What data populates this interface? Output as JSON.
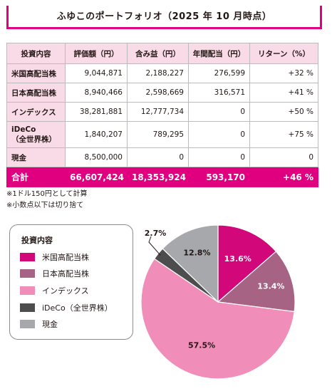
{
  "title": "ふゆこのポートフォリオ（2025 年 10 月時点）",
  "table": {
    "headers": [
      "投資内容",
      "評価額（円）",
      "含み益（円）",
      "年間配当（円）",
      "リターン（%）"
    ],
    "rows": [
      {
        "name": "米国高配当株",
        "sub": "",
        "value": "9,044,871",
        "gain": "2,188,227",
        "dividend": "276,599",
        "return": "+32 %"
      },
      {
        "name": "日本高配当株",
        "sub": "",
        "value": "8,940,466",
        "gain": "2,598,669",
        "dividend": "316,571",
        "return": "+41 %"
      },
      {
        "name": "インデックス",
        "sub": "",
        "value": "38,281,881",
        "gain": "12,777,734",
        "dividend": "0",
        "return": "+50 %"
      },
      {
        "name": "iDeCo",
        "sub": "（全世界株）",
        "value": "1,840,207",
        "gain": "789,295",
        "dividend": "0",
        "return": "+75 %"
      },
      {
        "name": "現金",
        "sub": "",
        "value": "8,500,000",
        "gain": "0",
        "dividend": "0",
        "return": "0"
      }
    ],
    "total": {
      "name": "合計",
      "value": "66,607,424",
      "gain": "18,353,924",
      "dividend": "593,170",
      "return": "+46 %"
    }
  },
  "notes": [
    "※1ドル150円として計算",
    "※小数点以下は切り捨て"
  ],
  "legend": {
    "title": "投資内容",
    "items": [
      "米国高配当株",
      "日本高配当株",
      "インデックス",
      "iDeCo（全世界株）",
      "現金"
    ]
  },
  "colors": {
    "accent": "#e0007f",
    "header_bg": "#f9dbe8",
    "us_dividend": "#d1077a",
    "jp_dividend": "#a66383",
    "index": "#f08db8",
    "ideco": "#4d4d4d",
    "cash": "#a6a8ab"
  },
  "chart_data": {
    "type": "pie",
    "title": "",
    "slices": [
      {
        "name": "米国高配当株",
        "value": 13.6,
        "label": "13.6%",
        "color": "#d1077a"
      },
      {
        "name": "日本高配当株",
        "value": 13.4,
        "label": "13.4%",
        "color": "#a66383"
      },
      {
        "name": "インデックス",
        "value": 57.5,
        "label": "57.5%",
        "color": "#f08db8"
      },
      {
        "name": "iDeCo（全世界株）",
        "value": 2.7,
        "label": "2.7%",
        "color": "#4d4d4d"
      },
      {
        "name": "現金",
        "value": 12.8,
        "label": "12.8%",
        "color": "#a6a8ab"
      }
    ],
    "start": "12 o'clock, clockwise",
    "legend": "left"
  }
}
